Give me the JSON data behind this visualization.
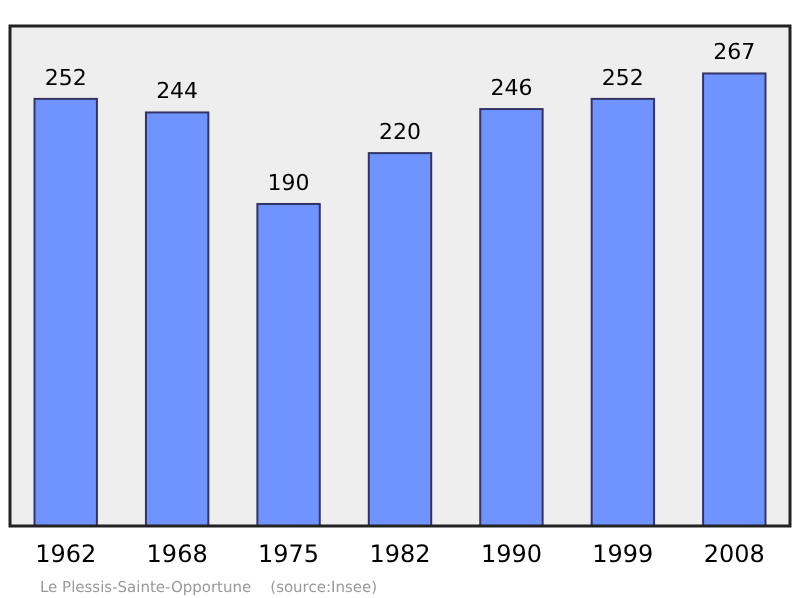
{
  "chart_data": {
    "type": "bar",
    "categories": [
      "1962",
      "1968",
      "1975",
      "1982",
      "1990",
      "1999",
      "2008"
    ],
    "values": [
      252,
      244,
      190,
      220,
      246,
      252,
      267
    ],
    "color": "#7094ff",
    "ylim": [
      0,
      295
    ],
    "data_labels": true,
    "annotations": [
      "Le Plessis-Sainte-Opportune    (source:Insee)"
    ]
  }
}
